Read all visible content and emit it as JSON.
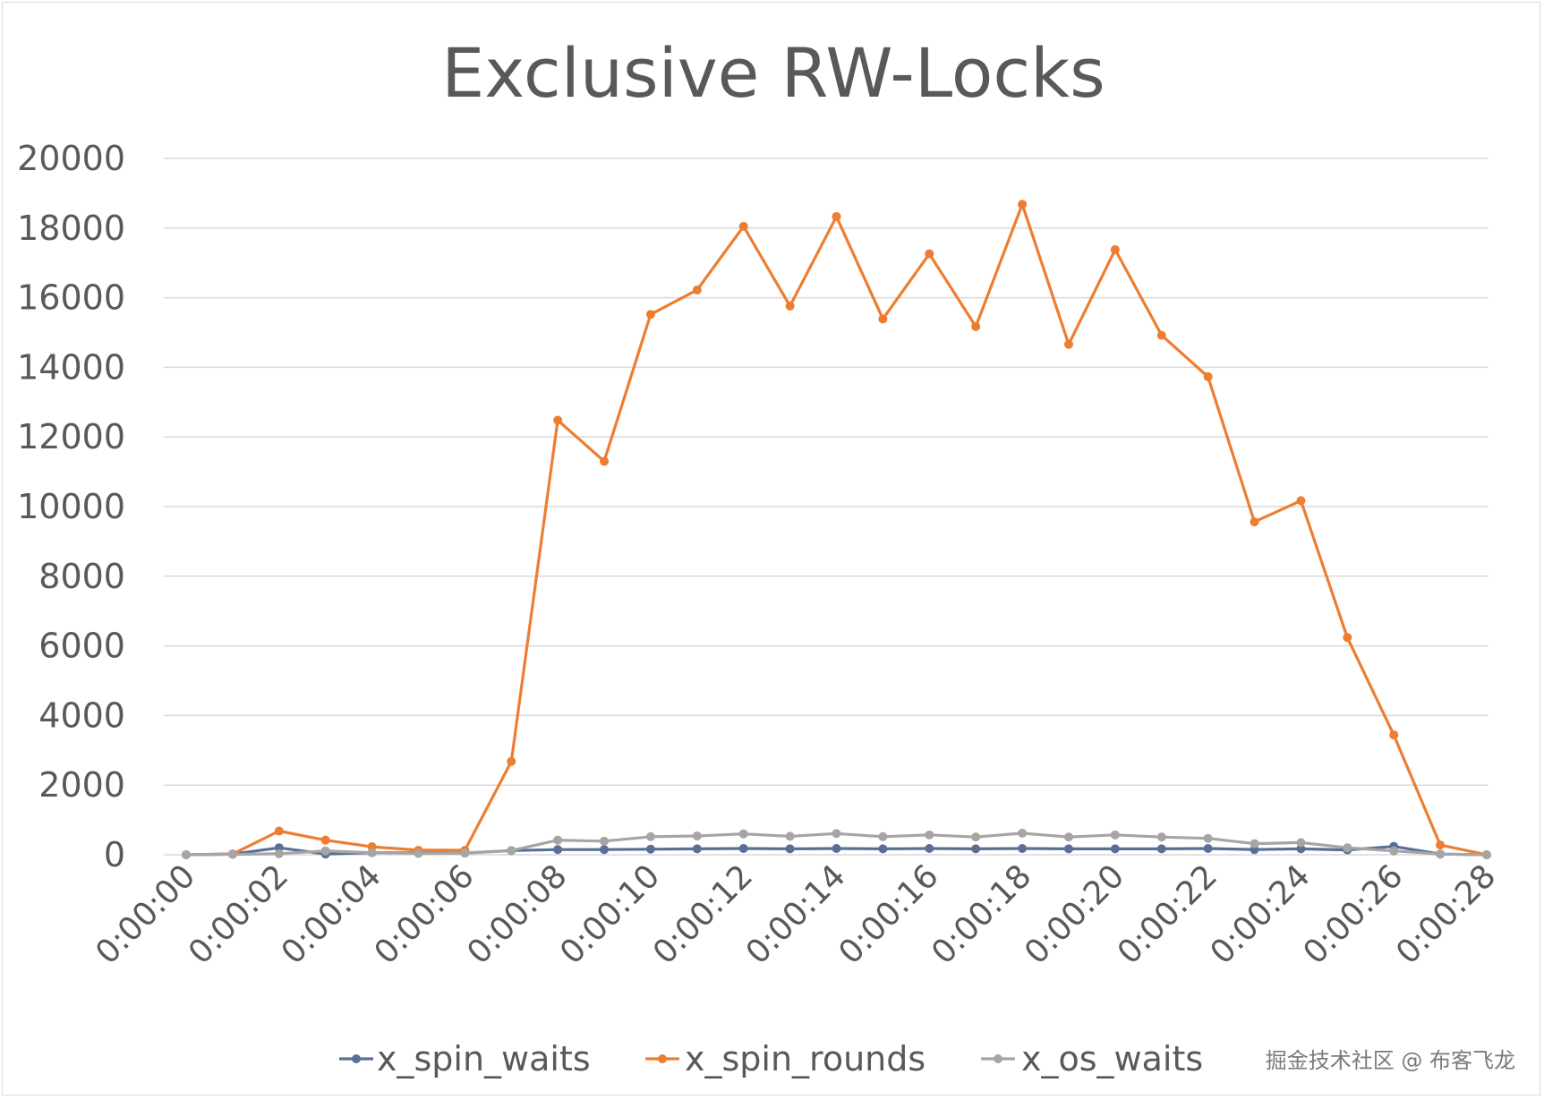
{
  "chart_data": {
    "type": "line",
    "title": "Exclusive RW-Locks",
    "xlabel": "",
    "ylabel": "",
    "ylim": [
      0,
      20000
    ],
    "y_ticks": [
      0,
      2000,
      4000,
      6000,
      8000,
      10000,
      12000,
      14000,
      16000,
      18000,
      20000
    ],
    "grid": true,
    "legend_position": "bottom",
    "x": [
      "0:00:00",
      "0:00:01",
      "0:00:02",
      "0:00:03",
      "0:00:04",
      "0:00:05",
      "0:00:06",
      "0:00:07",
      "0:00:08",
      "0:00:09",
      "0:00:10",
      "0:00:11",
      "0:00:12",
      "0:00:13",
      "0:00:14",
      "0:00:15",
      "0:00:16",
      "0:00:17",
      "0:00:18",
      "0:00:19",
      "0:00:20",
      "0:00:21",
      "0:00:22",
      "0:00:23",
      "0:00:24",
      "0:00:25",
      "0:00:26",
      "0:00:27",
      "0:00:28"
    ],
    "x_tick_labels": [
      "0:00:00",
      "0:00:02",
      "0:00:04",
      "0:00:06",
      "0:00:08",
      "0:00:10",
      "0:00:12",
      "0:00:14",
      "0:00:16",
      "0:00:18",
      "0:00:20",
      "0:00:22",
      "0:00:24",
      "0:00:26",
      "0:00:28"
    ],
    "series": [
      {
        "name": "x_spin_waits",
        "color": "#5a6f96",
        "values": [
          0,
          20,
          200,
          20,
          60,
          60,
          50,
          120,
          150,
          150,
          160,
          170,
          180,
          170,
          180,
          170,
          180,
          170,
          180,
          170,
          170,
          170,
          180,
          150,
          170,
          140,
          240,
          20,
          0
        ]
      },
      {
        "name": "x_spin_rounds",
        "color": "#ed7d31",
        "values": [
          0,
          20,
          680,
          420,
          230,
          130,
          130,
          2680,
          12480,
          11300,
          15520,
          16220,
          18050,
          15760,
          18330,
          15390,
          17260,
          15170,
          18680,
          14660,
          17380,
          14920,
          13730,
          9560,
          10170,
          6240,
          3440,
          280,
          0
        ]
      },
      {
        "name": "x_os_waits",
        "color": "#a5a5a5",
        "values": [
          0,
          10,
          30,
          110,
          60,
          40,
          50,
          120,
          420,
          390,
          520,
          540,
          600,
          530,
          610,
          520,
          570,
          510,
          620,
          510,
          570,
          510,
          470,
          320,
          350,
          200,
          110,
          20,
          0
        ]
      }
    ]
  },
  "watermark": "掘金技术社区 @ 布客飞龙"
}
